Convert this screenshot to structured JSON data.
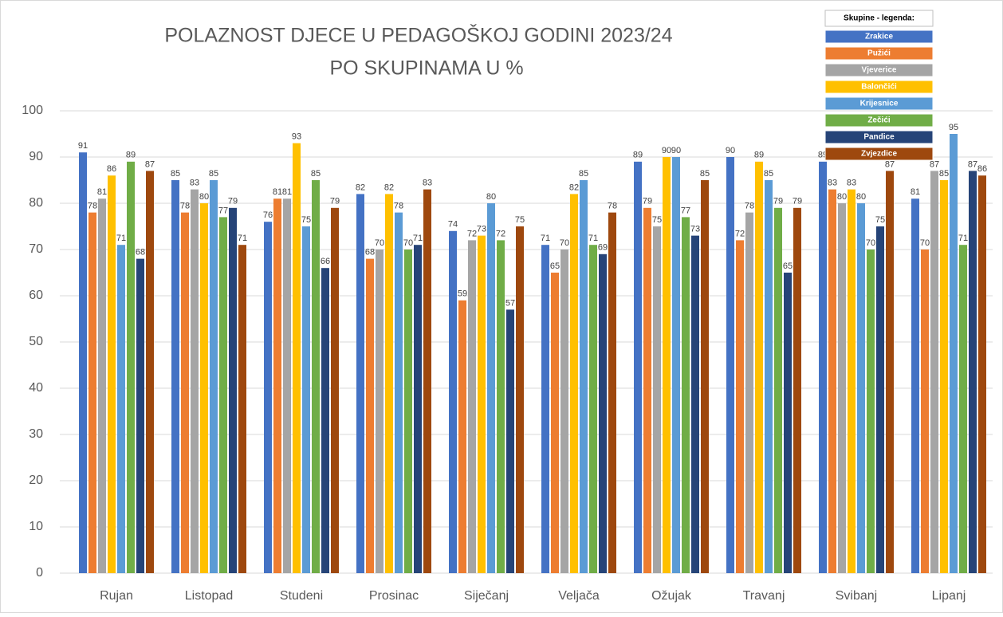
{
  "chart_data": {
    "type": "bar",
    "title": [
      "POLAZNOST DJECE U PEDAGOŠKOJ GODINI 2023/24",
      "PO SKUPINAMA U %"
    ],
    "legend_title": "Skupine - legenda:",
    "legend_position": "top-right",
    "categories": [
      "Rujan",
      "Listopad",
      "Studeni",
      "Prosinac",
      "Siječanj",
      "Veljača",
      "Ožujak",
      "Travanj",
      "Svibanj",
      "Lipanj"
    ],
    "series": [
      {
        "name": "Zrakice",
        "color": "#4472c4",
        "values": [
          91,
          85,
          76,
          82,
          74,
          71,
          89,
          90,
          89,
          81
        ]
      },
      {
        "name": "Pužići",
        "color": "#ed7d31",
        "values": [
          78,
          78,
          81,
          68,
          59,
          65,
          79,
          72,
          83,
          70
        ]
      },
      {
        "name": "Vjeverice",
        "color": "#a5a5a5",
        "values": [
          81,
          83,
          81,
          70,
          72,
          70,
          75,
          78,
          80,
          87
        ]
      },
      {
        "name": "Balončići",
        "color": "#ffc000",
        "values": [
          86,
          80,
          93,
          82,
          73,
          82,
          90,
          89,
          83,
          85
        ]
      },
      {
        "name": "Krijesnice",
        "color": "#5b9bd5",
        "values": [
          71,
          85,
          75,
          78,
          80,
          85,
          90,
          85,
          80,
          95
        ]
      },
      {
        "name": "Zečići",
        "color": "#70ad47",
        "values": [
          89,
          77,
          85,
          70,
          72,
          71,
          77,
          79,
          70,
          71
        ]
      },
      {
        "name": "Pandice",
        "color": "#264478",
        "values": [
          68,
          79,
          66,
          71,
          57,
          69,
          73,
          65,
          75,
          87
        ]
      },
      {
        "name": "Zvjezdice",
        "color": "#9e480e",
        "values": [
          87,
          71,
          79,
          83,
          75,
          78,
          85,
          79,
          87,
          86
        ]
      }
    ],
    "ylim": [
      0,
      100
    ],
    "yticks": [
      0,
      10,
      20,
      30,
      40,
      50,
      60,
      70,
      80,
      90,
      100
    ],
    "grid": true
  }
}
